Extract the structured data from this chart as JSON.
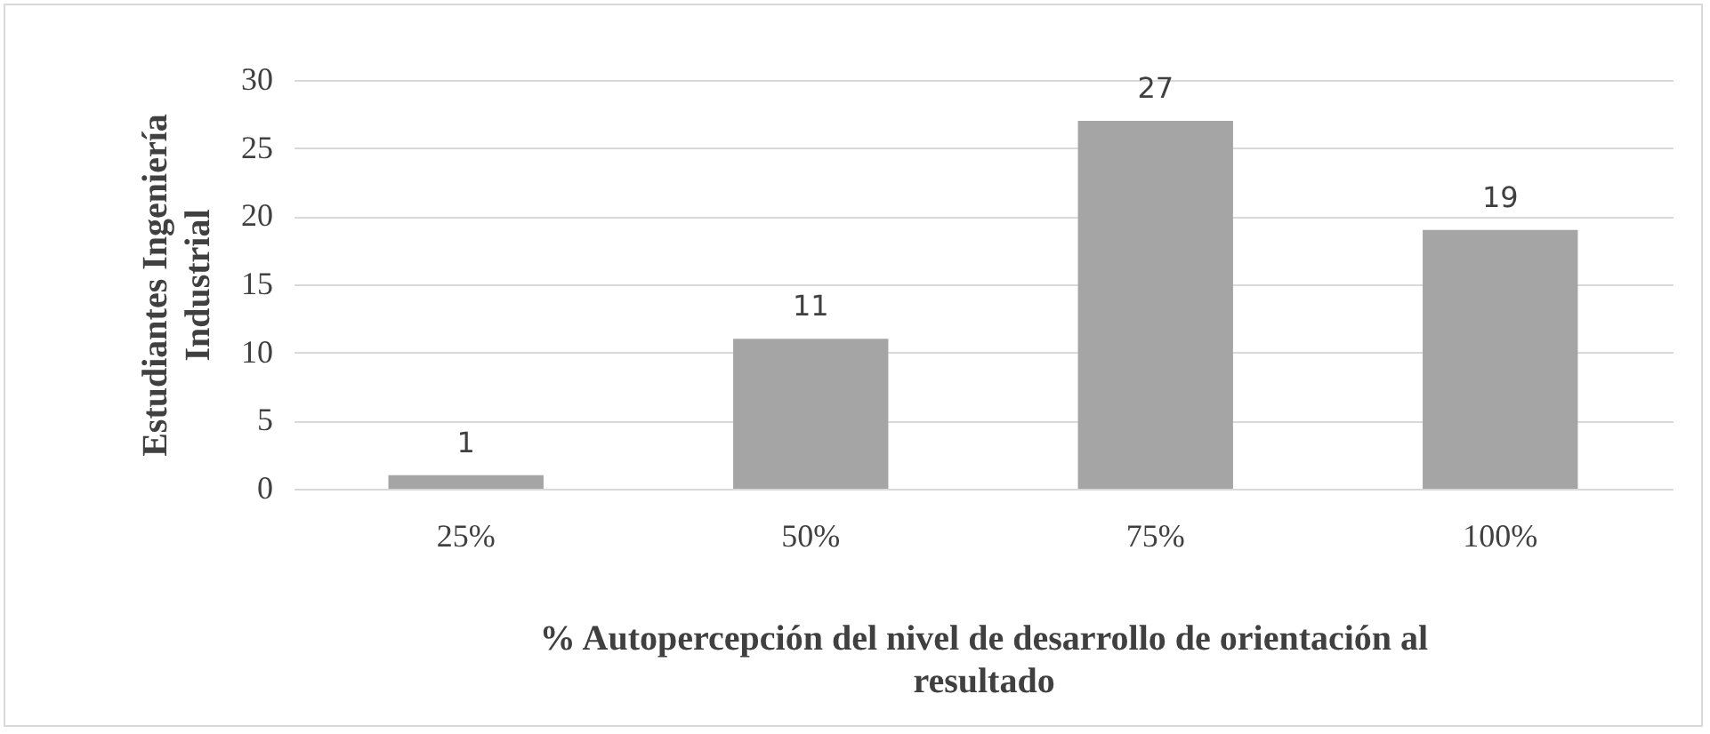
{
  "chart_data": {
    "type": "bar",
    "xlabel": "% Autopercepción del nivel de desarrollo de orientación al resultado",
    "ylabel": "Estudiantes Ingeniería Industrial",
    "categories": [
      "25%",
      "50%",
      "75%",
      "100%"
    ],
    "values": [
      1,
      11,
      27,
      19
    ],
    "color": "#a5a5a5",
    "ylim": [
      0,
      30
    ],
    "yticks": [
      0,
      5,
      10,
      15,
      20,
      25,
      30
    ],
    "grid": "y",
    "data_labels": true
  }
}
